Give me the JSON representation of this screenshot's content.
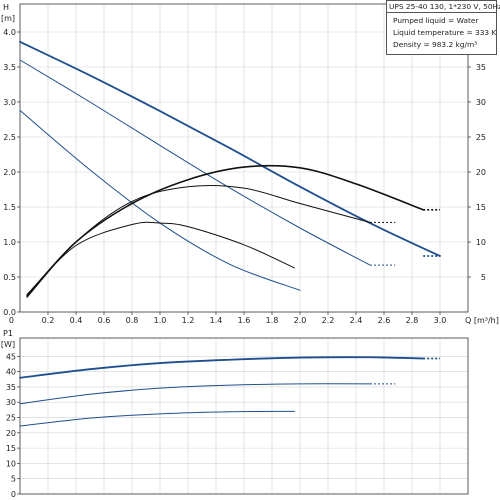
{
  "info": {
    "title": "UPS 25-40 130, 1*230 V, 50Hz",
    "lines": [
      "Pumped liquid = Water",
      "Liquid temperature = 333 K",
      "Density = 983.2 kg/m³"
    ]
  },
  "colors": {
    "head": "#1f4f8f",
    "eff": "#111111",
    "power": "#1f4f8f",
    "grid": "#d4d4d4"
  },
  "chart_data": [
    {
      "type": "line",
      "name": "head-efficiency",
      "x_axis": {
        "label": "Q [m³/h]",
        "min": 0,
        "max": 3.2,
        "ticks": [
          0.2,
          0.4,
          0.6,
          0.8,
          1.0,
          1.2,
          1.4,
          1.6,
          1.8,
          2.0,
          2.2,
          2.4,
          2.6,
          2.8,
          3.0
        ]
      },
      "y_axis_left": {
        "label_top": "H",
        "label_unit": "[m]",
        "min": 0,
        "max": 4.4,
        "ticks": [
          0.0,
          0.5,
          1.0,
          1.5,
          2.0,
          2.5,
          3.0,
          3.5,
          4.0
        ]
      },
      "y_axis_right": {
        "label_top": "eta",
        "label_unit": "[%]",
        "min": 0,
        "max": 44,
        "ticks": [
          5,
          10,
          15,
          20,
          25,
          30,
          35
        ]
      },
      "origin_label": "0",
      "grid": true,
      "series": [
        {
          "kind": "head",
          "axis": "left",
          "x": [
            0.0,
            0.5,
            1.0,
            1.5,
            2.0,
            2.5,
            3.0
          ],
          "y": [
            3.86,
            3.38,
            2.87,
            2.34,
            1.79,
            1.27,
            0.8
          ],
          "dashed_from": 2.88,
          "dashed_to": 3.0,
          "width": 1.8
        },
        {
          "kind": "head",
          "axis": "left",
          "x": [
            0.0,
            0.5,
            1.0,
            1.5,
            2.0,
            2.5
          ],
          "y": [
            3.6,
            3.0,
            2.38,
            1.77,
            1.2,
            0.67
          ],
          "dashed_from": 2.5,
          "dashed_to": 2.68,
          "width": 1.0
        },
        {
          "kind": "head",
          "axis": "left",
          "x": [
            0.0,
            0.5,
            1.0,
            1.5,
            2.0
          ],
          "y": [
            2.88,
            2.03,
            1.27,
            0.68,
            0.31
          ],
          "width": 1.0
        },
        {
          "kind": "eff",
          "axis": "right",
          "x": [
            0.05,
            0.4,
            0.8,
            1.2,
            1.6,
            2.0,
            2.4,
            2.88
          ],
          "y": [
            2.3,
            10.0,
            15.5,
            18.9,
            20.7,
            20.6,
            18.3,
            14.6
          ],
          "dashed_from": 2.88,
          "dashed_to": 3.0,
          "width": 1.6
        },
        {
          "kind": "eff",
          "axis": "right",
          "x": [
            0.05,
            0.4,
            0.8,
            1.2,
            1.6,
            2.0,
            2.5
          ],
          "y": [
            2.1,
            10.0,
            15.8,
            17.9,
            17.7,
            15.5,
            12.8
          ],
          "dashed_from": 2.5,
          "dashed_to": 2.68,
          "width": 1.0
        },
        {
          "kind": "eff",
          "axis": "right",
          "x": [
            0.05,
            0.4,
            0.8,
            1.0,
            1.2,
            1.6,
            1.96
          ],
          "y": [
            2.5,
            9.5,
            12.5,
            12.7,
            12.2,
            9.6,
            6.3
          ],
          "width": 1.0
        }
      ]
    },
    {
      "type": "line",
      "name": "power",
      "x_axis": {
        "min": 0,
        "max": 3.2
      },
      "y_axis_left": {
        "label_top": "P1",
        "label_unit": "[W]",
        "min": 0,
        "max": 51,
        "ticks": [
          0,
          5,
          10,
          15,
          20,
          25,
          30,
          35,
          40,
          45
        ]
      },
      "grid": true,
      "series": [
        {
          "kind": "power",
          "x": [
            0.0,
            0.5,
            1.0,
            1.5,
            2.0,
            2.5,
            2.88
          ],
          "y": [
            38.0,
            40.8,
            42.8,
            43.9,
            44.6,
            44.7,
            44.3
          ],
          "dashed_from": 2.88,
          "dashed_to": 3.0,
          "width": 1.8
        },
        {
          "kind": "power",
          "x": [
            0.0,
            0.5,
            1.0,
            1.5,
            2.0,
            2.5
          ],
          "y": [
            29.5,
            32.6,
            34.6,
            35.6,
            36.0,
            36.0
          ],
          "dashed_from": 2.5,
          "dashed_to": 2.68,
          "width": 1.0
        },
        {
          "kind": "power",
          "x": [
            0.0,
            0.5,
            1.0,
            1.5,
            1.96
          ],
          "y": [
            22.2,
            24.8,
            26.2,
            26.9,
            27.0
          ],
          "width": 1.0
        }
      ]
    }
  ]
}
